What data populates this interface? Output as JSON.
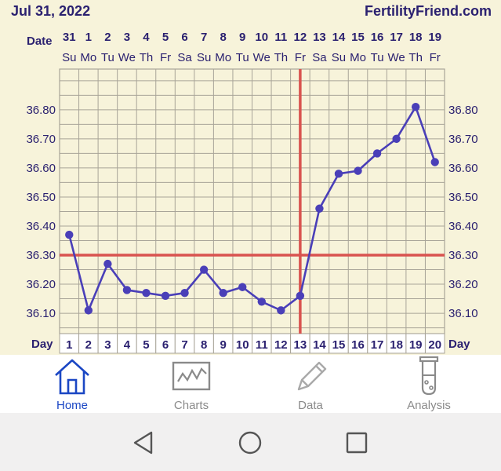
{
  "header": {
    "date": "Jul 31, 2022",
    "brand": "FertilityFriend.com"
  },
  "chart_data": {
    "type": "line",
    "date_row_label": "Date",
    "day_row_label": "Day",
    "dates": [
      "31",
      "1",
      "2",
      "3",
      "4",
      "5",
      "6",
      "7",
      "8",
      "9",
      "10",
      "11",
      "12",
      "13",
      "14",
      "15",
      "16",
      "17",
      "18",
      "19"
    ],
    "weekdays": [
      "Su",
      "Mo",
      "Tu",
      "We",
      "Th",
      "Fr",
      "Sa",
      "Su",
      "Mo",
      "Tu",
      "We",
      "Th",
      "Fr",
      "Sa",
      "Su",
      "Mo",
      "Tu",
      "We",
      "Th",
      "Fr"
    ],
    "days": [
      "1",
      "2",
      "3",
      "4",
      "5",
      "6",
      "7",
      "8",
      "9",
      "10",
      "11",
      "12",
      "13",
      "14",
      "15",
      "16",
      "17",
      "18",
      "19",
      "20"
    ],
    "temperatures": [
      36.37,
      36.11,
      36.27,
      36.18,
      36.17,
      36.16,
      36.17,
      36.25,
      36.17,
      36.19,
      36.14,
      36.11,
      36.16,
      36.46,
      36.58,
      36.59,
      36.65,
      36.7,
      36.81,
      36.62
    ],
    "yticks": [
      "36.80",
      "36.70",
      "36.60",
      "36.50",
      "36.40",
      "36.30",
      "36.20",
      "36.10"
    ],
    "ylim": [
      36.03,
      36.94
    ],
    "coverline": 36.3,
    "ovulation_day": 13,
    "colors": {
      "line": "#4a3fb8",
      "coverline": "#d9534f",
      "grid": "#a8a498",
      "background": "#f7f3da"
    }
  },
  "nav": {
    "items": [
      {
        "label": "Home",
        "icon": "home-icon",
        "active": true
      },
      {
        "label": "Charts",
        "icon": "chart-icon",
        "active": false
      },
      {
        "label": "Data",
        "icon": "pencil-icon",
        "active": false
      },
      {
        "label": "Analysis",
        "icon": "test-tube-icon",
        "active": false
      }
    ]
  },
  "system_nav": {
    "back": "back-triangle-icon",
    "home": "home-circle-icon",
    "recents": "recents-square-icon"
  }
}
